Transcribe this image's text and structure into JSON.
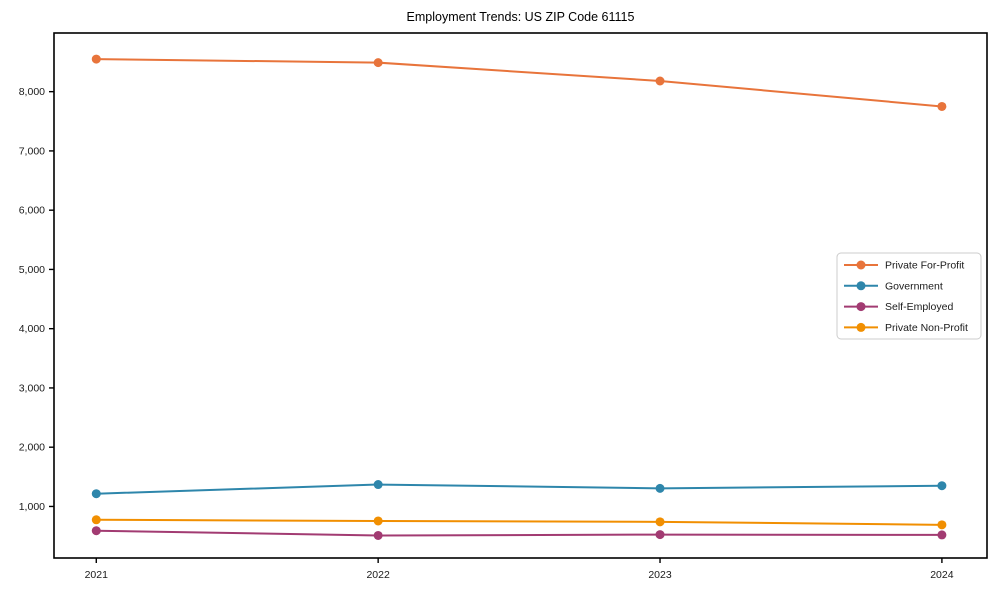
{
  "chart_data": {
    "type": "line",
    "title": "Employment Trends: US ZIP Code 61115",
    "xlabel": "",
    "ylabel": "",
    "x": [
      2021,
      2022,
      2023,
      2024
    ],
    "x_tick_labels": [
      "2021",
      "2022",
      "2023",
      "2024"
    ],
    "y_ticks": [
      1000,
      2000,
      3000,
      4000,
      5000,
      6000,
      7000,
      8000
    ],
    "y_tick_labels": [
      "1,000",
      "2,000",
      "3,000",
      "4,000",
      "5,000",
      "6,000",
      "7,000",
      "8,000"
    ],
    "xlim": [
      2020.85,
      2024.16
    ],
    "ylim": [
      130,
      8990
    ],
    "grid": false,
    "marker": "circle",
    "line_width": 2,
    "legend_position": "right-middle",
    "legend_border_color": "#cccccc",
    "axis_color": "#000000",
    "series": [
      {
        "name": "Private For-Profit",
        "color": "#E8743B",
        "values": [
          8550,
          8490,
          8180,
          7750
        ]
      },
      {
        "name": "Government",
        "color": "#2E86AB",
        "values": [
          1215,
          1370,
          1305,
          1350
        ]
      },
      {
        "name": "Self-Employed",
        "color": "#A23B72",
        "values": [
          590,
          510,
          525,
          520
        ]
      },
      {
        "name": "Private Non-Profit",
        "color": "#F18F01",
        "values": [
          775,
          755,
          740,
          690
        ]
      }
    ]
  }
}
